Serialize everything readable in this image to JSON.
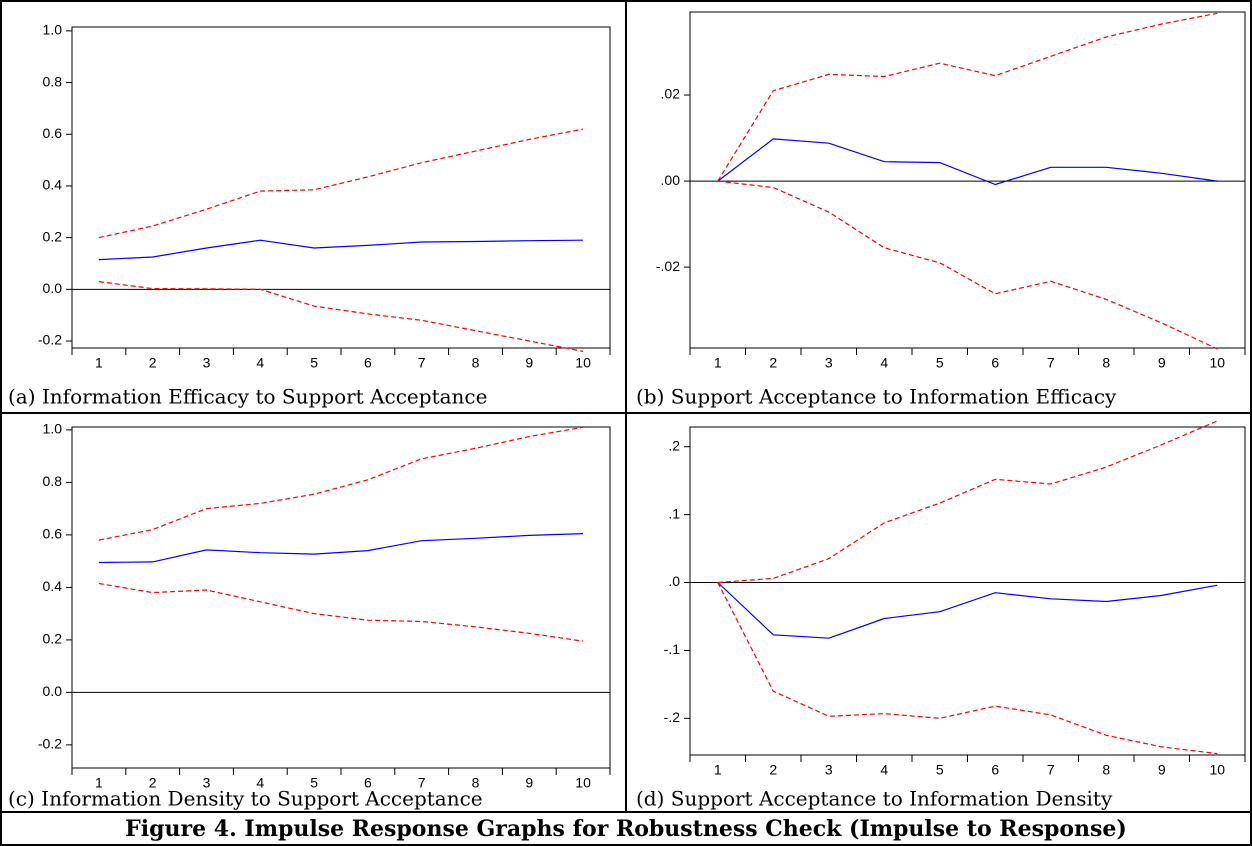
{
  "chart_data": [
    {
      "type": "line",
      "title": "(a) Information Efficacy to Support Acceptance",
      "categories": [
        "1",
        "2",
        "3",
        "4",
        "5",
        "6",
        "7",
        "8",
        "9",
        "10"
      ],
      "series": [
        {
          "color": "#0000ff",
          "dashed": false,
          "values": [
            0.115,
            0.125,
            0.16,
            0.19,
            0.16,
            0.17,
            0.183,
            0.185,
            0.188,
            0.19
          ]
        },
        {
          "color": "#ff0000",
          "dashed": true,
          "values": [
            0.2,
            0.245,
            0.31,
            0.38,
            0.385,
            0.435,
            0.49,
            0.535,
            0.58,
            0.62
          ]
        },
        {
          "color": "#ff0000",
          "dashed": true,
          "values": [
            0.03,
            0.003,
            0.002,
            0.0,
            -0.065,
            -0.095,
            -0.12,
            -0.16,
            -0.2,
            -0.24
          ]
        }
      ],
      "ylim": [
        -0.227,
        1.015
      ],
      "yticks": [
        -0.2,
        {
          "value": 0,
          "label": "0.0"
        },
        0.2,
        0.4,
        0.6,
        0.8,
        {
          "value": 1,
          "label": "1.0"
        }
      ],
      "zero_line": true
    },
    {
      "type": "line",
      "title": "(b) Support Acceptance to Information Efficacy",
      "categories": [
        "1",
        "2",
        "3",
        "4",
        "5",
        "6",
        "7",
        "8",
        "9",
        "10"
      ],
      "series": [
        {
          "color": "#0000ff",
          "dashed": false,
          "values": [
            0,
            0.0098,
            0.0088,
            0.0045,
            0.0043,
            -0.0008,
            0.0032,
            0.0032,
            0.0018,
            0.0
          ]
        },
        {
          "color": "#ff0000",
          "dashed": true,
          "values": [
            0,
            0.021,
            0.0248,
            0.0243,
            0.0274,
            0.0245,
            0.029,
            0.0335,
            0.0365,
            0.039
          ]
        },
        {
          "color": "#ff0000",
          "dashed": true,
          "values": [
            0,
            -0.0015,
            -0.0072,
            -0.0155,
            -0.019,
            -0.0262,
            -0.0233,
            -0.0275,
            -0.033,
            -0.039
          ]
        }
      ],
      "ylim": [
        -0.0388,
        0.0393
      ],
      "yticks": [
        {
          "value": -0.02,
          "label": "-.02"
        },
        {
          "value": 0,
          "label": ".00"
        },
        {
          "value": 0.02,
          "label": ".02"
        }
      ],
      "zero_line": true
    },
    {
      "type": "line",
      "title": "(c) Information Density to Support Acceptance",
      "categories": [
        "1",
        "2",
        "3",
        "4",
        "5",
        "6",
        "7",
        "8",
        "9",
        "10"
      ],
      "series": [
        {
          "color": "#0000ff",
          "dashed": false,
          "values": [
            0.495,
            0.497,
            0.543,
            0.532,
            0.527,
            0.54,
            0.578,
            0.587,
            0.598,
            0.605
          ]
        },
        {
          "color": "#ff0000",
          "dashed": true,
          "values": [
            0.58,
            0.62,
            0.7,
            0.72,
            0.755,
            0.81,
            0.89,
            0.93,
            0.975,
            1.01
          ]
        },
        {
          "color": "#ff0000",
          "dashed": true,
          "values": [
            0.415,
            0.38,
            0.39,
            0.345,
            0.3,
            0.275,
            0.27,
            0.25,
            0.225,
            0.195
          ]
        }
      ],
      "ylim": [
        -0.288,
        1.011
      ],
      "yticks": [
        -0.2,
        {
          "value": 0,
          "label": "0.0"
        },
        0.2,
        0.4,
        0.6,
        0.8,
        {
          "value": 1,
          "label": "1.0"
        }
      ],
      "zero_line": true
    },
    {
      "type": "line",
      "title": "(d) Support Acceptance to Information Density",
      "categories": [
        "1",
        "2",
        "3",
        "4",
        "5",
        "6",
        "7",
        "8",
        "9",
        "10"
      ],
      "series": [
        {
          "color": "#0000ff",
          "dashed": false,
          "values": [
            0,
            -0.077,
            -0.082,
            -0.053,
            -0.043,
            -0.015,
            -0.024,
            -0.028,
            -0.019,
            -0.004
          ]
        },
        {
          "color": "#ff0000",
          "dashed": true,
          "values": [
            0,
            0.006,
            0.035,
            0.088,
            0.117,
            0.152,
            0.145,
            0.17,
            0.203,
            0.238
          ]
        },
        {
          "color": "#ff0000",
          "dashed": true,
          "values": [
            0,
            -0.16,
            -0.197,
            -0.193,
            -0.2,
            -0.182,
            -0.195,
            -0.225,
            -0.242,
            -0.252
          ]
        }
      ],
      "ylim": [
        -0.254,
        0.229
      ],
      "yticks": [
        {
          "value": -0.2,
          "label": "-.2"
        },
        {
          "value": -0.1,
          "label": "-.1"
        },
        {
          "value": 0,
          "label": ".0"
        },
        {
          "value": 0.1,
          "label": ".1"
        },
        {
          "value": 0.2,
          "label": ".2"
        }
      ],
      "zero_line": true
    }
  ],
  "caption": "Figure 4. Impulse Response Graphs for Robustness Check (Impulse to Response)"
}
